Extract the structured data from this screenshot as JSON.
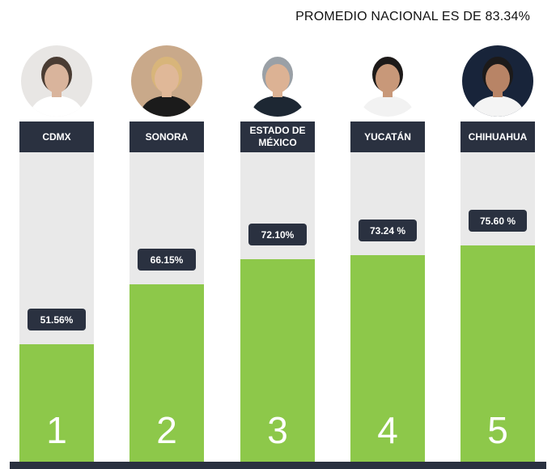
{
  "title": "PROMEDIO NACIONAL ES DE 83.34%",
  "chart_data": {
    "type": "bar",
    "title": "PROMEDIO NACIONAL ES DE 83.34%",
    "categories": [
      "CDMX",
      "SONORA",
      "ESTADO DE\nMÉXICO",
      "YUCATÁN",
      "CHIHUAHUA"
    ],
    "values": [
      51.56,
      66.15,
      72.1,
      73.24,
      75.6
    ],
    "value_labels": [
      "51.56%",
      "66.15%",
      "72.10%",
      "73.24 %",
      "75.60 %"
    ],
    "ranks": [
      "1",
      "2",
      "3",
      "4",
      "5"
    ],
    "ylim": [
      0,
      100
    ],
    "grid": false,
    "legend": "none",
    "colors": {
      "bar": "#8dc84a",
      "track": "#e9e9e9",
      "label_bg": "#2a3140",
      "text": "#ffffff"
    }
  },
  "avatars": [
    {
      "icon": "portrait-photo",
      "bg": "#e8e6e4",
      "hair": "#4a3c33",
      "skin": "#d9b49c",
      "clothes": "#ffffff"
    },
    {
      "icon": "portrait-photo",
      "bg": "#c9a98a",
      "hair": "#d8b57a",
      "skin": "#e0b898",
      "clothes": "#1b1b1b"
    },
    {
      "icon": "portrait-photo",
      "bg": "#ffffff",
      "hair": "#9aa0a6",
      "skin": "#dcb294",
      "clothes": "#1d2733"
    },
    {
      "icon": "portrait-photo",
      "bg": "#ffffff",
      "hair": "#1d1a19",
      "skin": "#c89879",
      "clothes": "#f2f2f2"
    },
    {
      "icon": "portrait-photo",
      "bg": "#18243a",
      "hair": "#1c1a1a",
      "skin": "#b88466",
      "clothes": "#f4f4f4"
    }
  ]
}
